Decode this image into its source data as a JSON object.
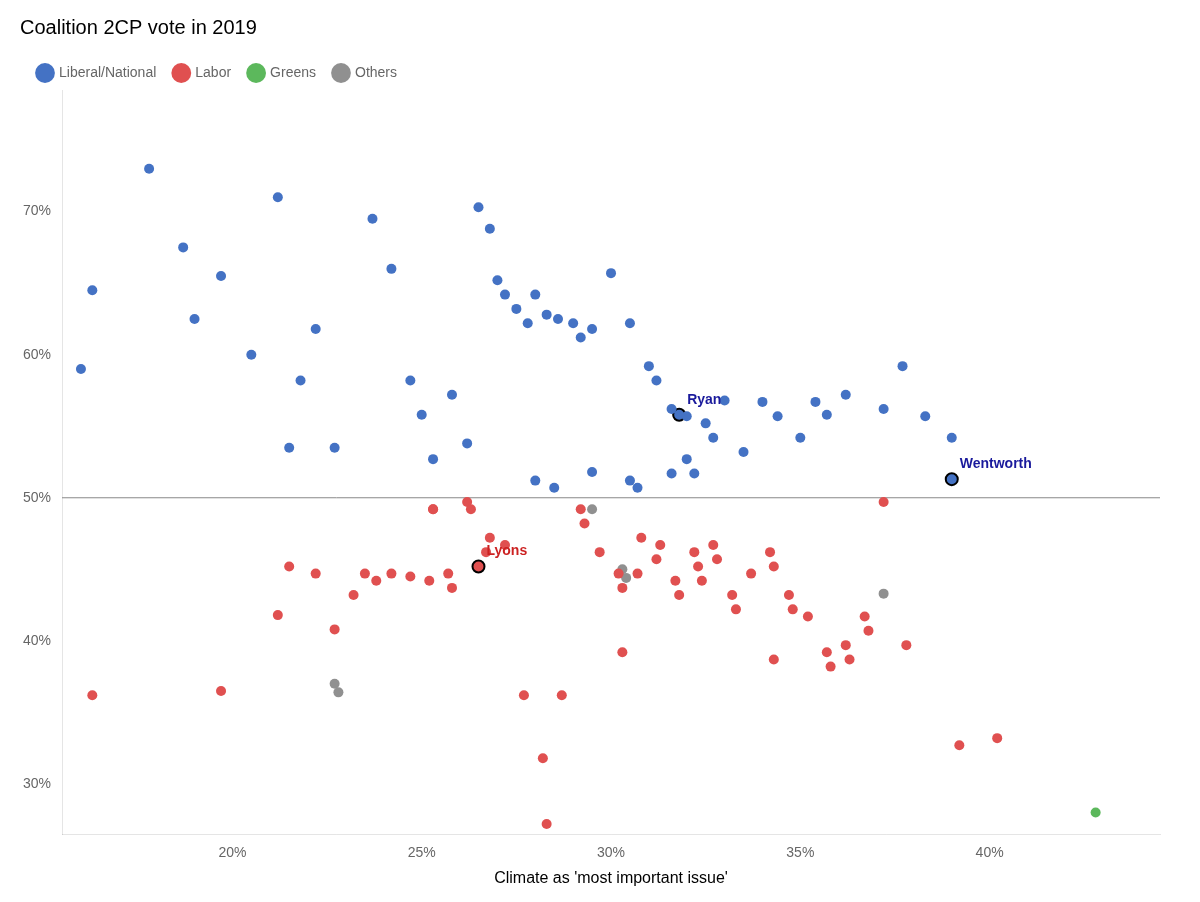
{
  "chart_data": {
    "type": "scatter",
    "title": "Coalition 2CP vote in 2019",
    "xlabel": "Climate as 'most important issue'",
    "xlim": [
      0.155,
      0.445
    ],
    "ylim": [
      0.265,
      0.785
    ],
    "xticks": [
      {
        "value": 0.2,
        "label": "20%"
      },
      {
        "value": 0.25,
        "label": "25%"
      },
      {
        "value": 0.3,
        "label": "30%"
      },
      {
        "value": 0.35,
        "label": "35%"
      },
      {
        "value": 0.4,
        "label": "40%"
      }
    ],
    "yticks": [
      {
        "value": 0.3,
        "label": "30%"
      },
      {
        "value": 0.4,
        "label": "40%"
      },
      {
        "value": 0.5,
        "label": "50%"
      },
      {
        "value": 0.6,
        "label": "60%"
      },
      {
        "value": 0.7,
        "label": "70%"
      }
    ],
    "hline": 0.5,
    "grid": false,
    "legend": "upper left",
    "series": [
      {
        "name": "Liberal/National",
        "color": "#4472C4",
        "x": [
          0.16,
          0.163,
          0.178,
          0.187,
          0.19,
          0.197,
          0.205,
          0.212,
          0.215,
          0.218,
          0.222,
          0.227,
          0.237,
          0.242,
          0.247,
          0.25,
          0.253,
          0.258,
          0.262,
          0.265,
          0.268,
          0.27,
          0.272,
          0.275,
          0.278,
          0.28,
          0.283,
          0.286,
          0.29,
          0.292,
          0.295,
          0.3,
          0.305,
          0.31,
          0.312,
          0.316,
          0.32,
          0.325,
          0.327,
          0.33,
          0.34,
          0.344,
          0.35,
          0.354,
          0.357,
          0.362,
          0.28,
          0.285,
          0.295,
          0.305,
          0.307,
          0.316,
          0.32,
          0.322,
          0.335,
          0.372,
          0.377,
          0.383,
          0.39
        ],
        "values": [
          0.59,
          0.645,
          0.73,
          0.675,
          0.625,
          0.655,
          0.6,
          0.71,
          0.535,
          0.582,
          0.618,
          0.535,
          0.695,
          0.66,
          0.582,
          0.558,
          0.527,
          0.572,
          0.538,
          0.703,
          0.688,
          0.652,
          0.642,
          0.632,
          0.622,
          0.642,
          0.628,
          0.625,
          0.622,
          0.612,
          0.618,
          0.657,
          0.622,
          0.592,
          0.582,
          0.562,
          0.557,
          0.552,
          0.542,
          0.568,
          0.567,
          0.557,
          0.542,
          0.567,
          0.558,
          0.572,
          0.512,
          0.507,
          0.518,
          0.512,
          0.507,
          0.517,
          0.527,
          0.517,
          0.532,
          0.562,
          0.592,
          0.557,
          0.542
        ],
        "annotations": [
          {
            "text": "Ryan",
            "x": 0.318,
            "y": 0.558,
            "color": "#1a1a9c"
          },
          {
            "text": "Wentworth",
            "x": 0.39,
            "y": 0.513,
            "color": "#1a1a9c"
          }
        ]
      },
      {
        "name": "Labor",
        "color": "#E05050",
        "x": [
          0.163,
          0.197,
          0.212,
          0.215,
          0.222,
          0.227,
          0.232,
          0.235,
          0.238,
          0.242,
          0.247,
          0.252,
          0.253,
          0.257,
          0.258,
          0.262,
          0.263,
          0.267,
          0.268,
          0.272,
          0.277,
          0.282,
          0.287,
          0.292,
          0.293,
          0.297,
          0.302,
          0.303,
          0.307,
          0.308,
          0.312,
          0.313,
          0.317,
          0.318,
          0.322,
          0.323,
          0.324,
          0.327,
          0.328,
          0.332,
          0.333,
          0.337,
          0.342,
          0.343,
          0.347,
          0.348,
          0.352,
          0.357,
          0.358,
          0.362,
          0.363,
          0.367,
          0.368,
          0.283,
          0.343,
          0.372,
          0.378,
          0.392,
          0.402,
          0.253,
          0.303
        ],
        "values": [
          0.362,
          0.365,
          0.418,
          0.452,
          0.447,
          0.408,
          0.432,
          0.447,
          0.442,
          0.447,
          0.445,
          0.442,
          0.492,
          0.447,
          0.437,
          0.497,
          0.492,
          0.462,
          0.472,
          0.467,
          0.362,
          0.318,
          0.362,
          0.492,
          0.482,
          0.462,
          0.447,
          0.437,
          0.447,
          0.472,
          0.457,
          0.467,
          0.442,
          0.432,
          0.462,
          0.452,
          0.442,
          0.467,
          0.457,
          0.432,
          0.422,
          0.447,
          0.462,
          0.452,
          0.432,
          0.422,
          0.417,
          0.392,
          0.382,
          0.397,
          0.387,
          0.417,
          0.407,
          0.272,
          0.387,
          0.497,
          0.397,
          0.327,
          0.332,
          0.492,
          0.392
        ],
        "annotations": [
          {
            "text": "Lyons",
            "x": 0.265,
            "y": 0.452,
            "color": "#cc2222"
          }
        ]
      },
      {
        "name": "Greens",
        "color": "#5CB85C",
        "x": [
          0.428
        ],
        "values": [
          0.28
        ]
      },
      {
        "name": "Others",
        "color": "#909090",
        "x": [
          0.227,
          0.228,
          0.295,
          0.303,
          0.304,
          0.372
        ],
        "values": [
          0.37,
          0.364,
          0.492,
          0.45,
          0.444,
          0.433
        ]
      }
    ]
  }
}
